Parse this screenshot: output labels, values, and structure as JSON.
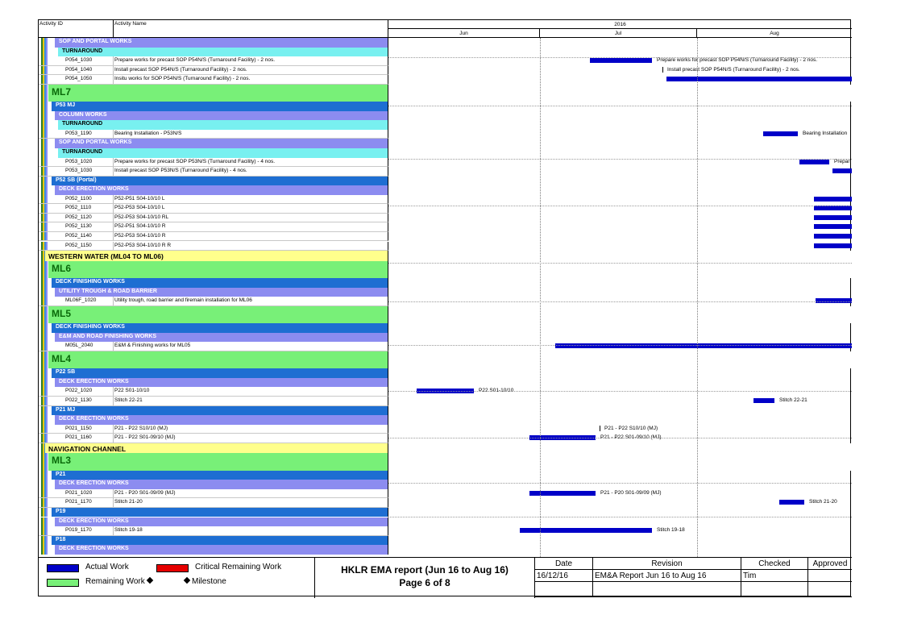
{
  "header": {
    "col_id": "Activity ID",
    "col_name": "Activity Name",
    "year": "2016",
    "months": [
      "Jun",
      "Jul",
      "Aug"
    ]
  },
  "colors": {
    "wbs_purple": "#8c8cf0",
    "wbs_cyan": "#78f0f0",
    "wbs_blue": "#1e6ed2",
    "wbs_green": "#78f078",
    "wbs_yellow": "#ffff8c",
    "bar": "#0000c8",
    "critical": "#e60000"
  },
  "rows": [
    {
      "kind": "grp",
      "color": "wbs_purple",
      "indent": 22,
      "title": "SOP AND PORTAL WORKS"
    },
    {
      "kind": "grp",
      "color": "wbs_cyan",
      "indent": 26,
      "title": "TURNAROUND"
    },
    {
      "kind": "act",
      "id": "P054_1030",
      "name": "Prepare works for precast SOP P54N/S (Turnaround Facility) - 2 nos.",
      "bar": [
        250,
        327
      ],
      "label": "Prepare works for precast SOP P54N/S (Turnaround Facility) - 2 nos."
    },
    {
      "kind": "act",
      "id": "P054_1040",
      "name": "Install precast SOP P54N/S (Turnaround Facility) - 2 nos.",
      "ms": 340,
      "label": "Install precast SOP P54N/S (Turnaround Facility) - 2 nos."
    },
    {
      "kind": "act",
      "id": "P054_1050",
      "name": "Insitu works for SOP P54N/S (Turnaround Facility) - 2 nos.",
      "bar": [
        345,
        575
      ]
    },
    {
      "kind": "grp",
      "size": "big",
      "color": "wbs_green",
      "indent": 14,
      "title": "ML7"
    },
    {
      "kind": "grp",
      "color": "wbs_blue",
      "indent": 18,
      "title": "P53 MJ",
      "light": true
    },
    {
      "kind": "grp",
      "color": "wbs_purple",
      "indent": 22,
      "title": "COLUMN WORKS"
    },
    {
      "kind": "grp",
      "color": "wbs_cyan",
      "indent": 26,
      "title": "TURNAROUND"
    },
    {
      "kind": "act",
      "id": "P053_1190",
      "name": "Bearing Installation - P53N/S",
      "bar": [
        465,
        508
      ],
      "label": "Bearing Installation"
    },
    {
      "kind": "grp",
      "color": "wbs_purple",
      "indent": 22,
      "title": "SOP AND PORTAL WORKS"
    },
    {
      "kind": "grp",
      "color": "wbs_cyan",
      "indent": 26,
      "title": "TURNAROUND"
    },
    {
      "kind": "act",
      "id": "P053_1020",
      "name": "Prepare works for precast SOP P53N/S (Turnaround Facility) - 4 nos.",
      "bar": [
        510,
        547
      ],
      "label": "Prepar"
    },
    {
      "kind": "act",
      "id": "P053_1030",
      "name": "Install precast SOP P53N/S (Turnaround Facility) - 4 nos.",
      "bar": [
        551,
        575
      ]
    },
    {
      "kind": "grp",
      "color": "wbs_blue",
      "indent": 18,
      "title": "P52 SB (Portal)",
      "light": true
    },
    {
      "kind": "grp",
      "color": "wbs_purple",
      "indent": 22,
      "title": "DECK ERECTION WORKS"
    },
    {
      "kind": "act",
      "id": "P052_1100",
      "name": "P52-P51 S04-10/10 L",
      "bar": [
        528,
        575
      ]
    },
    {
      "kind": "act",
      "id": "P052_1110",
      "name": "P52-P53 S04-10/10 L",
      "bar": [
        528,
        575
      ]
    },
    {
      "kind": "act",
      "id": "P052_1120",
      "name": "P52-P53 S04-10/10 RL",
      "bar": [
        528,
        575
      ]
    },
    {
      "kind": "act",
      "id": "P052_1130",
      "name": "P52-P51 S04-10/10 R",
      "bar": [
        528,
        575
      ]
    },
    {
      "kind": "act",
      "id": "P052_1140",
      "name": "P52-P53 S04-10/10 R",
      "bar": [
        528,
        575
      ]
    },
    {
      "kind": "act",
      "id": "P052_1150",
      "name": "P52-P53 S04-10/10 R R",
      "bar": [
        528,
        575
      ]
    },
    {
      "kind": "grp",
      "size": "mid",
      "color": "wbs_yellow",
      "indent": 10,
      "title": "WESTERN WATER (ML04 TO ML06)"
    },
    {
      "kind": "grp",
      "size": "big",
      "color": "wbs_green",
      "indent": 14,
      "title": "ML6"
    },
    {
      "kind": "grp",
      "color": "wbs_blue",
      "indent": 18,
      "title": "DECK FINISHING WORKS",
      "light": true
    },
    {
      "kind": "grp",
      "color": "wbs_purple",
      "indent": 22,
      "title": "UTILITY TROUGH & ROAD BARRIER"
    },
    {
      "kind": "act",
      "id": "ML06F_1020",
      "name": "Utility trough, road barrier and firemain installation for ML06",
      "bar": [
        530,
        575
      ]
    },
    {
      "kind": "grp",
      "size": "big",
      "color": "wbs_green",
      "indent": 14,
      "title": "ML5"
    },
    {
      "kind": "grp",
      "color": "wbs_blue",
      "indent": 18,
      "title": "DECK FINISHING WORKS",
      "light": true
    },
    {
      "kind": "grp",
      "color": "wbs_purple",
      "indent": 22,
      "title": "E&M AND ROAD FINISHING WORKS"
    },
    {
      "kind": "act",
      "id": "M05L_2040",
      "name": "E&M & Finishing works for ML05",
      "bar": [
        207,
        575
      ]
    },
    {
      "kind": "grp",
      "size": "big",
      "color": "wbs_green",
      "indent": 14,
      "title": "ML4"
    },
    {
      "kind": "grp",
      "color": "wbs_blue",
      "indent": 18,
      "title": "P22 SB",
      "light": true
    },
    {
      "kind": "grp",
      "color": "wbs_purple",
      "indent": 22,
      "title": "DECK ERECTION WORKS"
    },
    {
      "kind": "act",
      "id": "P022_1020",
      "name": "P22 S01-10/10",
      "bar": [
        35,
        106
      ],
      "label": "P22 S01-10/10"
    },
    {
      "kind": "act",
      "id": "P022_1130",
      "name": "Stitch 22-21",
      "bar": [
        453,
        479
      ],
      "label": "Stitch 22-21"
    },
    {
      "kind": "grp",
      "color": "wbs_blue",
      "indent": 18,
      "title": "P21 MJ",
      "light": true
    },
    {
      "kind": "grp",
      "color": "wbs_purple",
      "indent": 22,
      "title": "DECK ERECTION WORKS"
    },
    {
      "kind": "act",
      "id": "P021_1150",
      "name": "P21 - P22 S10/10 (MJ)",
      "ms": 262,
      "label": "P21 - P22 S10/10 (MJ)"
    },
    {
      "kind": "act",
      "id": "P021_1160",
      "name": "P21 - P22 S01-09/10 (MJ)",
      "bar": [
        175,
        257
      ],
      "label": "P21 - P22 S01-09/10 (MJ)"
    },
    {
      "kind": "grp",
      "size": "mid",
      "color": "wbs_yellow",
      "indent": 10,
      "title": "NAVIGATION CHANNEL"
    },
    {
      "kind": "grp",
      "size": "big",
      "color": "wbs_green",
      "indent": 14,
      "title": "ML3"
    },
    {
      "kind": "grp",
      "color": "wbs_blue",
      "indent": 18,
      "title": "P21",
      "light": true
    },
    {
      "kind": "grp",
      "color": "wbs_purple",
      "indent": 22,
      "title": "DECK ERECTION WORKS"
    },
    {
      "kind": "act",
      "id": "P021_1020",
      "name": "P21 - P20 S01-09/09 (MJ)",
      "bar": [
        175,
        257
      ],
      "label": "P21 - P20 S01-09/09 (MJ)"
    },
    {
      "kind": "act",
      "id": "P021_1170",
      "name": "Stitch 21-20",
      "bar": [
        485,
        516
      ],
      "label": "Stitch 21-20"
    },
    {
      "kind": "grp",
      "color": "wbs_blue",
      "indent": 18,
      "title": "P19",
      "light": true
    },
    {
      "kind": "grp",
      "color": "wbs_purple",
      "indent": 22,
      "title": "DECK ERECTION WORKS"
    },
    {
      "kind": "act",
      "id": "P019_1170",
      "name": "Stitch 19-18",
      "bar": [
        163,
        327
      ],
      "label": "Stitch 19-18"
    },
    {
      "kind": "grp",
      "color": "wbs_blue",
      "indent": 18,
      "title": "P18",
      "light": true
    },
    {
      "kind": "grp",
      "color": "wbs_purple",
      "indent": 22,
      "title": "DECK ERECTION WORKS"
    }
  ],
  "legend": {
    "actual": "Actual Work",
    "critical": "Critical Remaining Work",
    "remaining": "Remaining Work",
    "milestone": "Milestone"
  },
  "footer": {
    "title": "HKLR EMA report (Jun 16 to Aug 16)",
    "page": "Page 6 of 8",
    "table_headers": [
      "Date",
      "Revision",
      "Checked",
      "Approved"
    ],
    "table_row": [
      "16/12/16",
      "EM&A Report Jun 16 to Aug 16",
      "Tim",
      ""
    ]
  }
}
